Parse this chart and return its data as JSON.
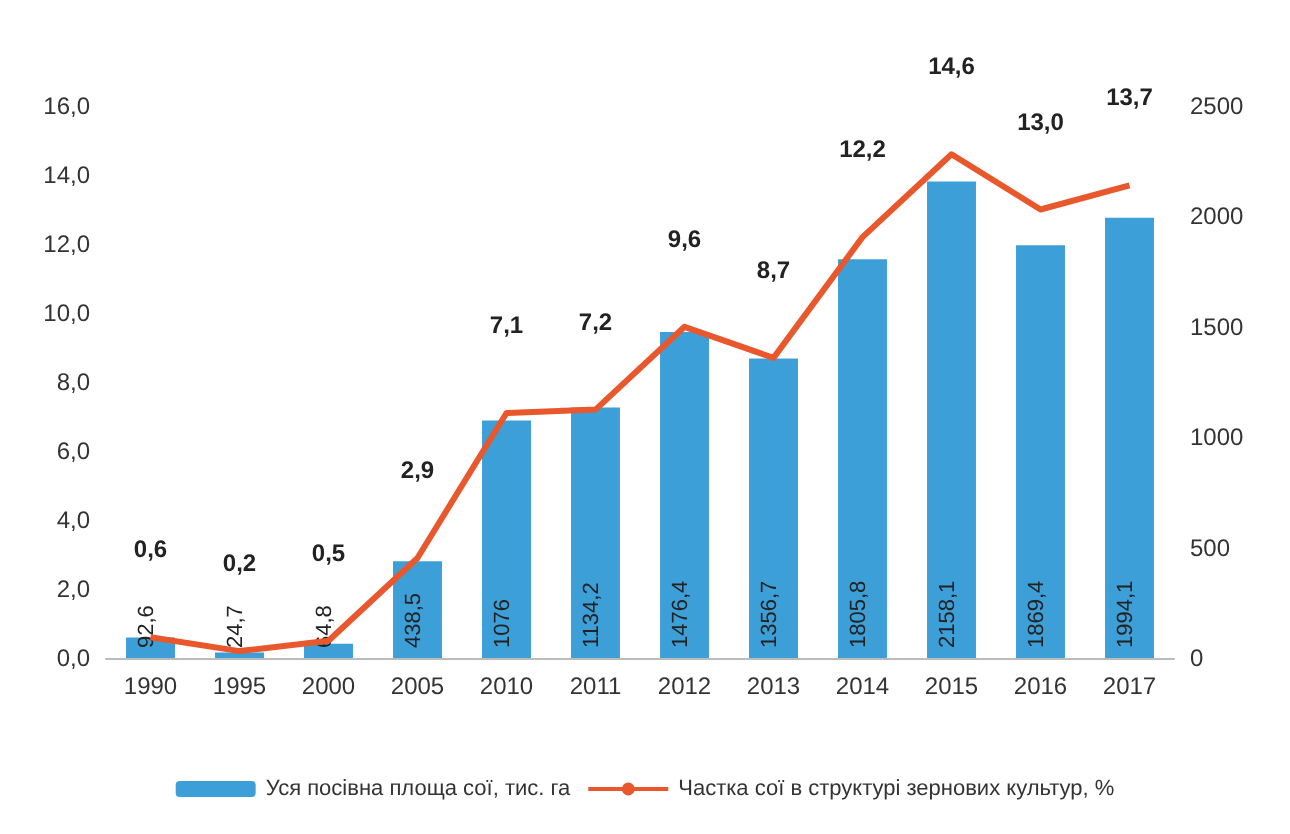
{
  "chart_data": {
    "type": "bar",
    "categories": [
      "1990",
      "1995",
      "2000",
      "2005",
      "2010",
      "2011",
      "2012",
      "2013",
      "2014",
      "2015",
      "2016",
      "2017"
    ],
    "series": [
      {
        "name": "Уся посівна площа сої, тис. га",
        "axis": "y2",
        "color": "#3d9fd8",
        "values": [
          92.6,
          24.7,
          64.8,
          438.5,
          1076,
          1134.2,
          1476.4,
          1356.7,
          1805.8,
          2158.1,
          1869.4,
          1994.1
        ],
        "value_labels": [
          "92,6",
          "24,7",
          "64,8",
          "438,5",
          "1076",
          "1134,2",
          "1476,4",
          "1356,7",
          "1805,8",
          "2158,1",
          "1869,4",
          "1994,1"
        ]
      },
      {
        "name": "Частка сої в структурі зернових культур, %",
        "type": "line",
        "color": "#e8582c",
        "values": [
          0.6,
          0.2,
          0.5,
          2.9,
          7.1,
          7.2,
          9.6,
          8.7,
          12.2,
          14.6,
          13.0,
          13.7
        ],
        "value_labels": [
          "0,6",
          "0,2",
          "0,5",
          "2,9",
          "7,1",
          "7,2",
          "9,6",
          "8,7",
          "12,2",
          "14,6",
          "13,0",
          "13,7"
        ]
      }
    ],
    "ylim": [
      0,
      16
    ],
    "yticks": [
      {
        "value": 0,
        "label": "0,0"
      },
      {
        "value": 2,
        "label": "2,0"
      },
      {
        "value": 4,
        "label": "4,0"
      },
      {
        "value": 6,
        "label": "6,0"
      },
      {
        "value": 8,
        "label": "8,0"
      },
      {
        "value": 10,
        "label": "10,0"
      },
      {
        "value": 12,
        "label": "12,0"
      },
      {
        "value": 14,
        "label": "14,0"
      },
      {
        "value": 16,
        "label": "16,0"
      }
    ],
    "y2lim": [
      0,
      2500
    ],
    "y2ticks": [
      0,
      500,
      1000,
      1500,
      2000,
      2500
    ],
    "grid": false,
    "legend": "bottom",
    "marker": "none",
    "line_style": "solid"
  }
}
